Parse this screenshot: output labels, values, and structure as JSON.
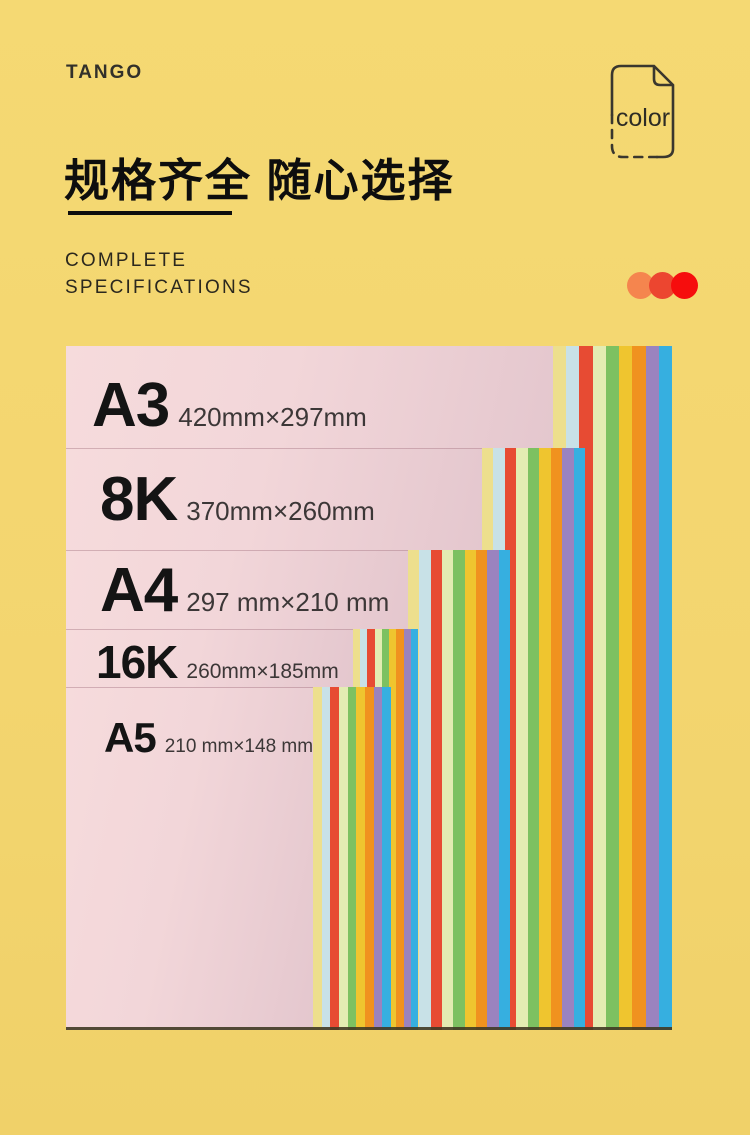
{
  "brand": "TANGO",
  "badge": {
    "label": "color"
  },
  "header": {
    "title": "规格齐全 随心选择",
    "subtitle_line1": "COMPLETE",
    "subtitle_line2": "SPECIFICATIONS",
    "dot_colors": [
      "#F5854E",
      "#EC4630",
      "#F60D0D"
    ]
  },
  "colors": {
    "background": "#F3D56F",
    "sheet_pink": "#EED2D6",
    "heading_text": "#0E0E0E"
  },
  "paper_stack": {
    "stripe_colors": [
      "#EDDF8D",
      "#C8E1E7",
      "#E74B33",
      "#E3ECB2",
      "#7DC161",
      "#EFC52F",
      "#F0921F",
      "#9A83BF",
      "#36AFE0"
    ],
    "sizes": [
      {
        "label": "A3",
        "dimensions": "420mm×297mm"
      },
      {
        "label": "8K",
        "dimensions": "370mm×260mm"
      },
      {
        "label": "A4",
        "dimensions": "297 mm×210 mm"
      },
      {
        "label": "16K",
        "dimensions": "260mm×185mm"
      },
      {
        "label": "A5",
        "dimensions": "210 mm×148 mm"
      }
    ]
  }
}
